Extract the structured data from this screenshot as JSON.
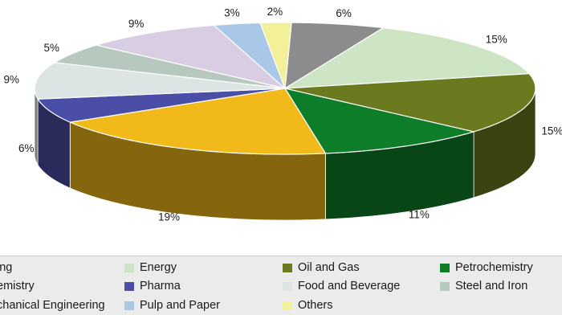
{
  "chart_data": {
    "type": "pie",
    "style": "3d",
    "legend_position": "bottom",
    "slices": [
      {
        "label": "Mechanical Engineering",
        "value": 6,
        "display": "6%",
        "color": "#8c8c8c"
      },
      {
        "label": "Energy",
        "value": 15,
        "display": "15%",
        "color": "#cde5c4"
      },
      {
        "label": "Oil and Gas",
        "value": 15,
        "display": "15%",
        "color": "#6b7a1f"
      },
      {
        "label": "Petrochemistry",
        "value": 11,
        "display": "11%",
        "color": "#0e7d2a"
      },
      {
        "label": "Chemistry",
        "value": 19,
        "display": "19%",
        "color": "#f2b91a"
      },
      {
        "label": "Pharma",
        "value": 6,
        "display": "6%",
        "color": "#4b4ea6"
      },
      {
        "label": "Food and Beverage",
        "value": 9,
        "display": "9%",
        "color": "#dce5e4"
      },
      {
        "label": "Steel and Iron",
        "value": 5,
        "display": "5%",
        "color": "#b7c9bf"
      },
      {
        "label": "Engineering",
        "value": 9,
        "display": "9%",
        "color": "#d8cde3"
      },
      {
        "label": "Pulp and Paper",
        "value": 3,
        "display": "3%",
        "color": "#a9c8e8"
      },
      {
        "label": "Others",
        "value": 2,
        "display": "2%",
        "color": "#f3f09a"
      }
    ]
  },
  "legend": {
    "items": [
      {
        "text": "ing",
        "color": "#8c8c8c",
        "show_swatch": false
      },
      {
        "text": "Energy",
        "color": "#cde5c4",
        "show_swatch": true
      },
      {
        "text": "Oil and Gas",
        "color": "#6b7a1f",
        "show_swatch": true
      },
      {
        "text": "Petrochemistry",
        "color": "#0e7d2a",
        "show_swatch": true
      },
      {
        "text": "emistry",
        "color": "#f2b91a",
        "show_swatch": false
      },
      {
        "text": "Pharma",
        "color": "#4b4ea6",
        "show_swatch": true
      },
      {
        "text": "Food and Beverage",
        "color": "#dce5e4",
        "show_swatch": true
      },
      {
        "text": "Steel and Iron",
        "color": "#b7c9bf",
        "show_swatch": true
      },
      {
        "text": "chanical Engineering",
        "color": "#8c8c8c",
        "show_swatch": false
      },
      {
        "text": "Pulp and Paper",
        "color": "#a9c8e8",
        "show_swatch": true
      },
      {
        "text": "Others",
        "color": "#f3f09a",
        "show_swatch": true
      }
    ]
  }
}
